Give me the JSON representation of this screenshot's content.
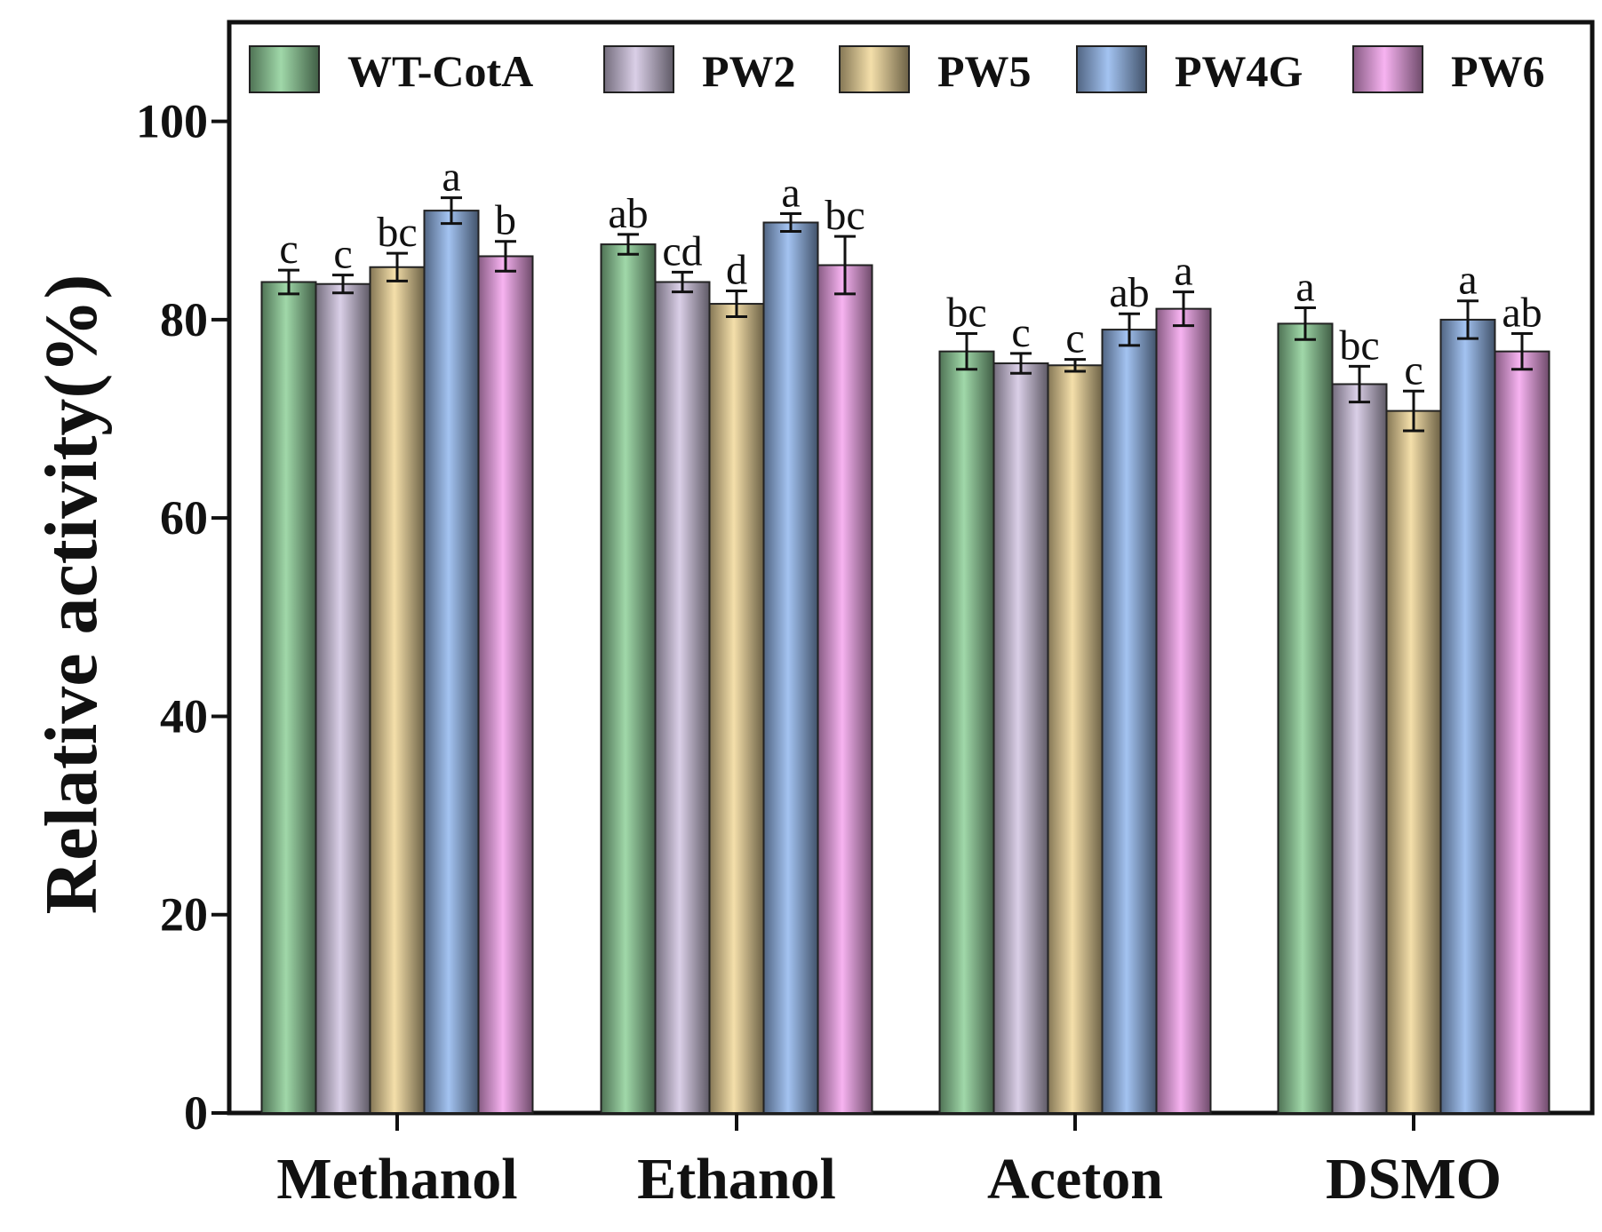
{
  "chart_data": {
    "type": "bar",
    "title": "",
    "xlabel": "",
    "ylabel": "Relative activity(%)",
    "ylim": [
      0,
      110
    ],
    "yticks": [
      0,
      20,
      40,
      60,
      80,
      100
    ],
    "categories": [
      "Methanol",
      "Ethanol",
      "Aceton",
      "DSMO"
    ],
    "legend_position": "top",
    "series": [
      {
        "name": "WT-CotA",
        "color": "#8fd19a",
        "values": [
          83.8,
          87.6,
          76.8,
          79.6
        ],
        "errors": [
          1.2,
          1.0,
          1.8,
          1.6
        ],
        "letters": [
          "c",
          "ab",
          "bc",
          "a"
        ]
      },
      {
        "name": "PW2",
        "color": "#d3c7e3",
        "values": [
          83.6,
          83.8,
          75.6,
          73.5
        ],
        "errors": [
          0.9,
          1.0,
          1.0,
          1.8
        ],
        "letters": [
          "c",
          "cd",
          "c",
          "bc"
        ]
      },
      {
        "name": "PW5",
        "color": "#f2d99b",
        "values": [
          85.3,
          81.6,
          75.4,
          70.8
        ],
        "errors": [
          1.4,
          1.3,
          0.6,
          2.0
        ],
        "letters": [
          "bc",
          "d",
          "c",
          "c"
        ]
      },
      {
        "name": "PW4G",
        "color": "#93b8ee",
        "values": [
          91.0,
          89.8,
          79.0,
          80.0
        ],
        "errors": [
          1.3,
          0.9,
          1.6,
          1.9
        ],
        "letters": [
          "a",
          "a",
          "ab",
          "a"
        ]
      },
      {
        "name": "PW6",
        "color": "#f6a6ee",
        "values": [
          86.4,
          85.5,
          81.1,
          76.8
        ],
        "errors": [
          1.5,
          2.9,
          1.7,
          1.8
        ],
        "letters": [
          "b",
          "bc",
          "a",
          "ab"
        ]
      }
    ]
  }
}
